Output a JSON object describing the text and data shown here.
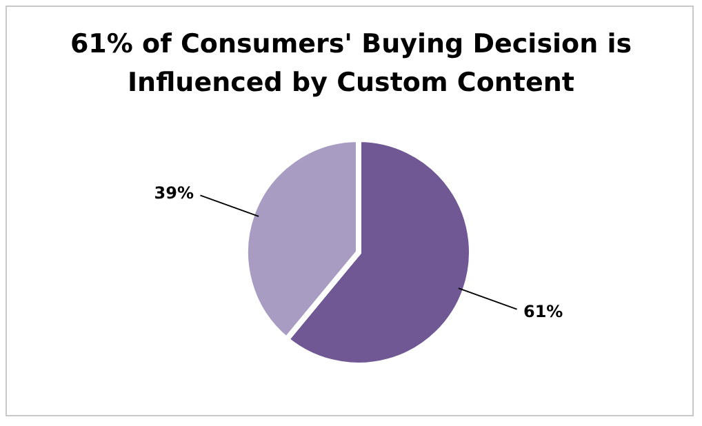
{
  "chart_data": {
    "type": "pie",
    "title": "61% of Consumers' Buying Decision is Influenced by Custom Content",
    "categories": [
      null,
      null
    ],
    "values": [
      61,
      39
    ],
    "colors": [
      "#6f5893",
      "#a99cc2"
    ],
    "value_labels": [
      "61%",
      "39%"
    ]
  }
}
